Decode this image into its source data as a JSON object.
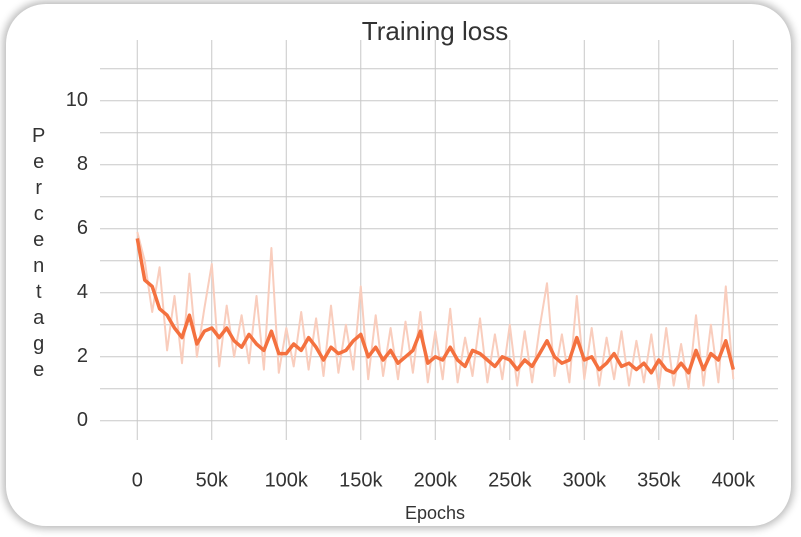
{
  "chart_data": {
    "type": "line",
    "title": "Training loss",
    "x_label": "Epochs",
    "y_label": "Percentage",
    "x": [
      0,
      5000,
      10000,
      15000,
      20000,
      25000,
      30000,
      35000,
      40000,
      45000,
      50000,
      55000,
      60000,
      65000,
      70000,
      75000,
      80000,
      85000,
      90000,
      95000,
      100000,
      105000,
      110000,
      115000,
      120000,
      125000,
      130000,
      135000,
      140000,
      145000,
      150000,
      155000,
      160000,
      165000,
      170000,
      175000,
      180000,
      185000,
      190000,
      195000,
      200000,
      205000,
      210000,
      215000,
      220000,
      225000,
      230000,
      235000,
      240000,
      245000,
      250000,
      255000,
      260000,
      265000,
      270000,
      275000,
      280000,
      285000,
      290000,
      295000,
      300000,
      305000,
      310000,
      315000,
      320000,
      325000,
      330000,
      335000,
      340000,
      345000,
      350000,
      355000,
      360000,
      365000,
      370000,
      375000,
      380000,
      385000,
      390000,
      395000,
      400000
    ],
    "series": [
      {
        "color": "#f9cdbd",
        "values": [
          5.9,
          5.0,
          3.4,
          4.8,
          2.2,
          3.9,
          1.8,
          4.6,
          2.0,
          3.5,
          4.9,
          1.7,
          3.6,
          2.0,
          3.3,
          1.8,
          3.9,
          1.6,
          5.4,
          1.5,
          2.9,
          1.7,
          3.4,
          1.6,
          3.2,
          1.4,
          3.6,
          1.5,
          3.0,
          1.6,
          4.2,
          1.3,
          3.3,
          1.4,
          2.9,
          1.3,
          3.1,
          1.5,
          3.4,
          1.2,
          2.8,
          1.3,
          3.5,
          1.2,
          2.6,
          1.4,
          3.2,
          1.2,
          2.7,
          1.3,
          3.0,
          1.1,
          2.8,
          1.2,
          2.9,
          4.3,
          1.4,
          2.7,
          1.2,
          3.9,
          1.3,
          2.9,
          1.1,
          2.6,
          1.3,
          2.8,
          1.1,
          2.5,
          1.2,
          2.7,
          1.0,
          2.9,
          1.1,
          2.4,
          1.0,
          3.3,
          1.1,
          3.0,
          1.2,
          4.2,
          1.3
        ]
      },
      {
        "color": "#f4713f",
        "values": [
          5.7,
          4.4,
          4.2,
          3.5,
          3.3,
          2.9,
          2.6,
          3.3,
          2.4,
          2.8,
          2.9,
          2.6,
          2.9,
          2.5,
          2.3,
          2.7,
          2.4,
          2.2,
          2.8,
          2.1,
          2.1,
          2.4,
          2.2,
          2.6,
          2.3,
          1.9,
          2.3,
          2.1,
          2.2,
          2.5,
          2.7,
          2.0,
          2.3,
          1.9,
          2.2,
          1.8,
          2.0,
          2.2,
          2.8,
          1.8,
          2.0,
          1.9,
          2.3,
          1.9,
          1.7,
          2.2,
          2.1,
          1.9,
          1.7,
          2.0,
          1.9,
          1.6,
          1.9,
          1.7,
          2.1,
          2.5,
          2.0,
          1.8,
          1.9,
          2.6,
          1.9,
          2.0,
          1.6,
          1.8,
          2.1,
          1.7,
          1.8,
          1.6,
          1.8,
          1.5,
          1.9,
          1.6,
          1.5,
          1.8,
          1.5,
          2.2,
          1.6,
          2.1,
          1.9,
          2.5,
          1.6
        ]
      }
    ],
    "xlim": [
      -25000,
      430000
    ],
    "ylim": [
      -0.6,
      11.9
    ],
    "xticks": [
      0,
      {
        "value": 50000,
        "label": "50k"
      },
      {
        "value": 100000,
        "label": "100k"
      },
      {
        "value": 150000,
        "label": "150k"
      },
      {
        "value": 200000,
        "label": "200k"
      },
      {
        "value": 250000,
        "label": "250k"
      },
      {
        "value": 300000,
        "label": "300k"
      },
      {
        "value": 350000,
        "label": "350k"
      },
      {
        "value": 400000,
        "label": "400k"
      }
    ],
    "yticks": [
      0,
      2,
      4,
      6,
      8,
      10
    ],
    "y_minor_ticks": [
      1,
      3,
      5,
      7,
      9,
      11
    ],
    "grid": true
  }
}
